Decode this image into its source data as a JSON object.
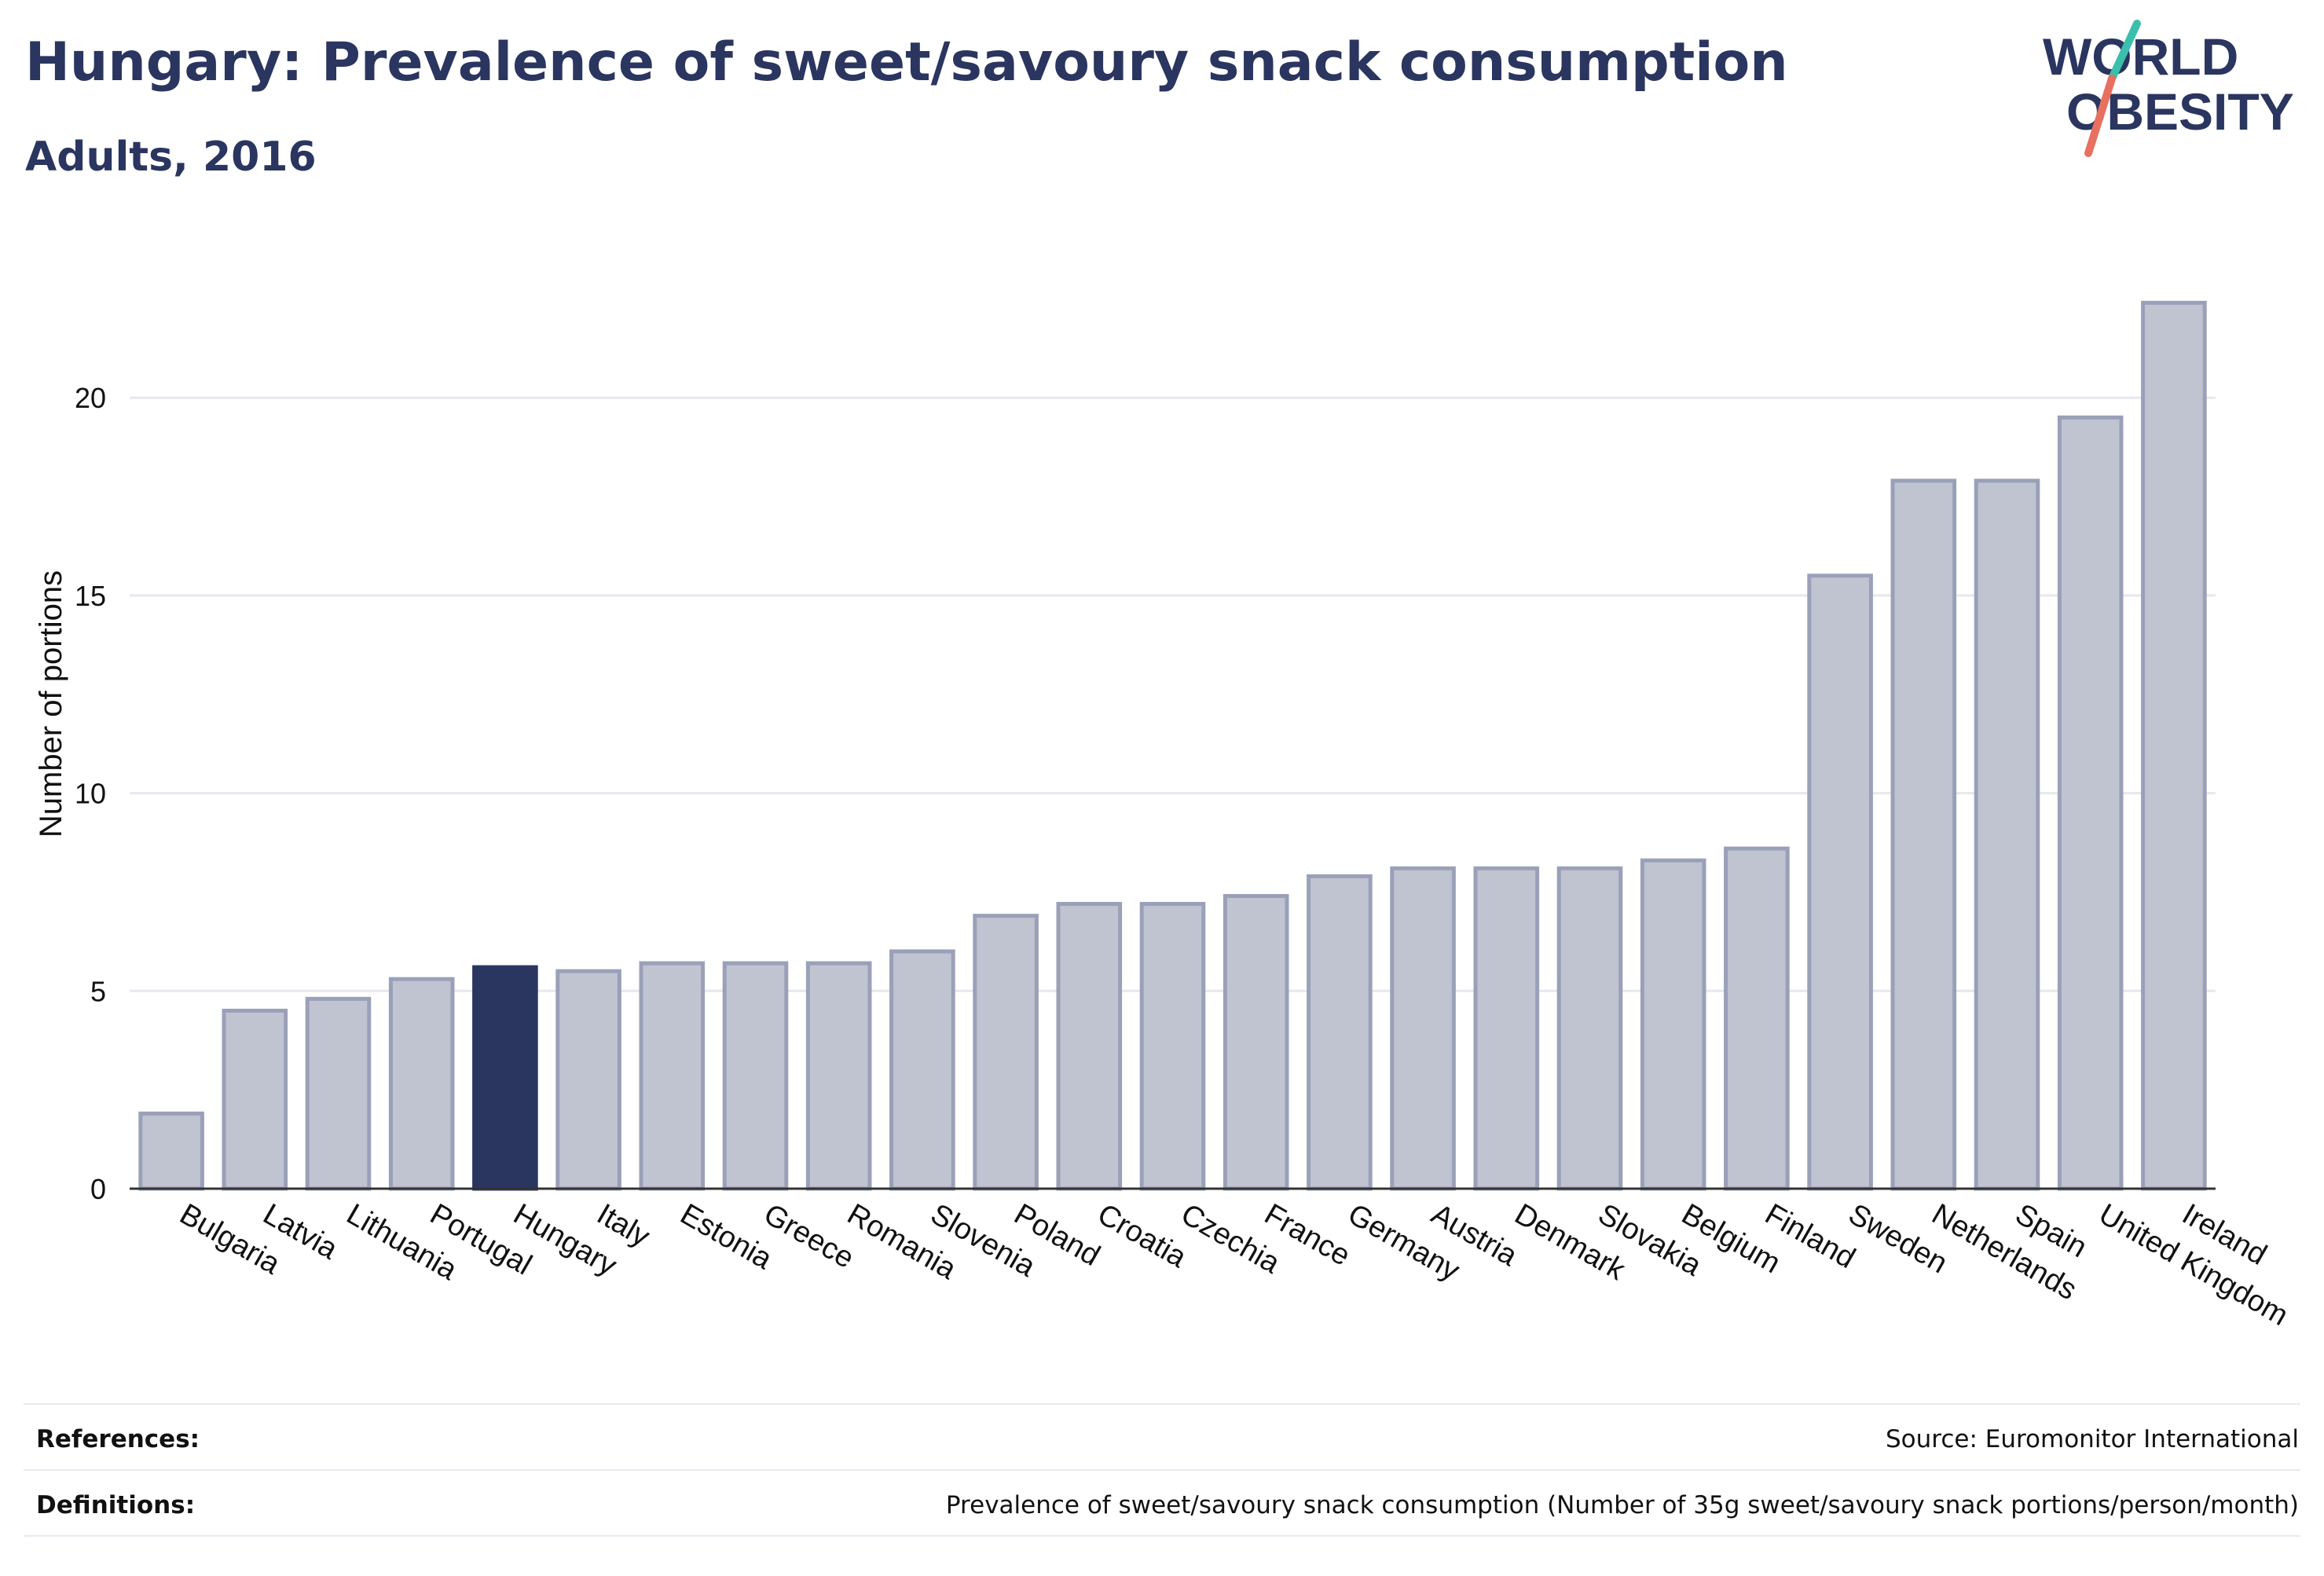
{
  "header": {
    "title": "Hungary: Prevalence of sweet/savoury snack consumption",
    "subtitle": "Adults, 2016"
  },
  "logo": {
    "line1": "WORLD",
    "line2": "OBESITY",
    "colors": {
      "text": "#2a3560",
      "slash_top": "#3bbfad",
      "slash_bottom": "#e8705f"
    }
  },
  "chart_data": {
    "type": "bar",
    "categories": [
      "Bulgaria",
      "Latvia",
      "Lithuania",
      "Portugal",
      "Hungary",
      "Italy",
      "Estonia",
      "Greece",
      "Romania",
      "Slovenia",
      "Poland",
      "Croatia",
      "Czechia",
      "France",
      "Germany",
      "Austria",
      "Denmark",
      "Slovakia",
      "Belgium",
      "Finland",
      "Sweden",
      "Netherlands",
      "Spain",
      "United Kingdom",
      "Ireland"
    ],
    "values": [
      1.9,
      4.5,
      4.8,
      5.3,
      5.6,
      5.5,
      5.7,
      5.7,
      5.7,
      6.0,
      6.9,
      7.2,
      7.2,
      7.4,
      7.9,
      8.1,
      8.1,
      8.1,
      8.3,
      8.6,
      15.5,
      17.9,
      17.9,
      19.5,
      22.4
    ],
    "highlight": "Hungary",
    "ylabel": "Number of portions",
    "xlabel": "",
    "ylim": [
      0,
      23.5
    ],
    "yticks": [
      0,
      5,
      10,
      15,
      20
    ],
    "grid": true,
    "colors": {
      "bar": "#c0c3d0",
      "bar_edge": "#9aa0b8",
      "highlight": "#2a3560"
    }
  },
  "footer": {
    "references_label": "References:",
    "references_value": "Source: Euromonitor International",
    "definitions_label": "Definitions:",
    "definitions_value": "Prevalence of sweet/savoury snack consumption (Number of 35g sweet/savoury snack portions/person/month)"
  }
}
